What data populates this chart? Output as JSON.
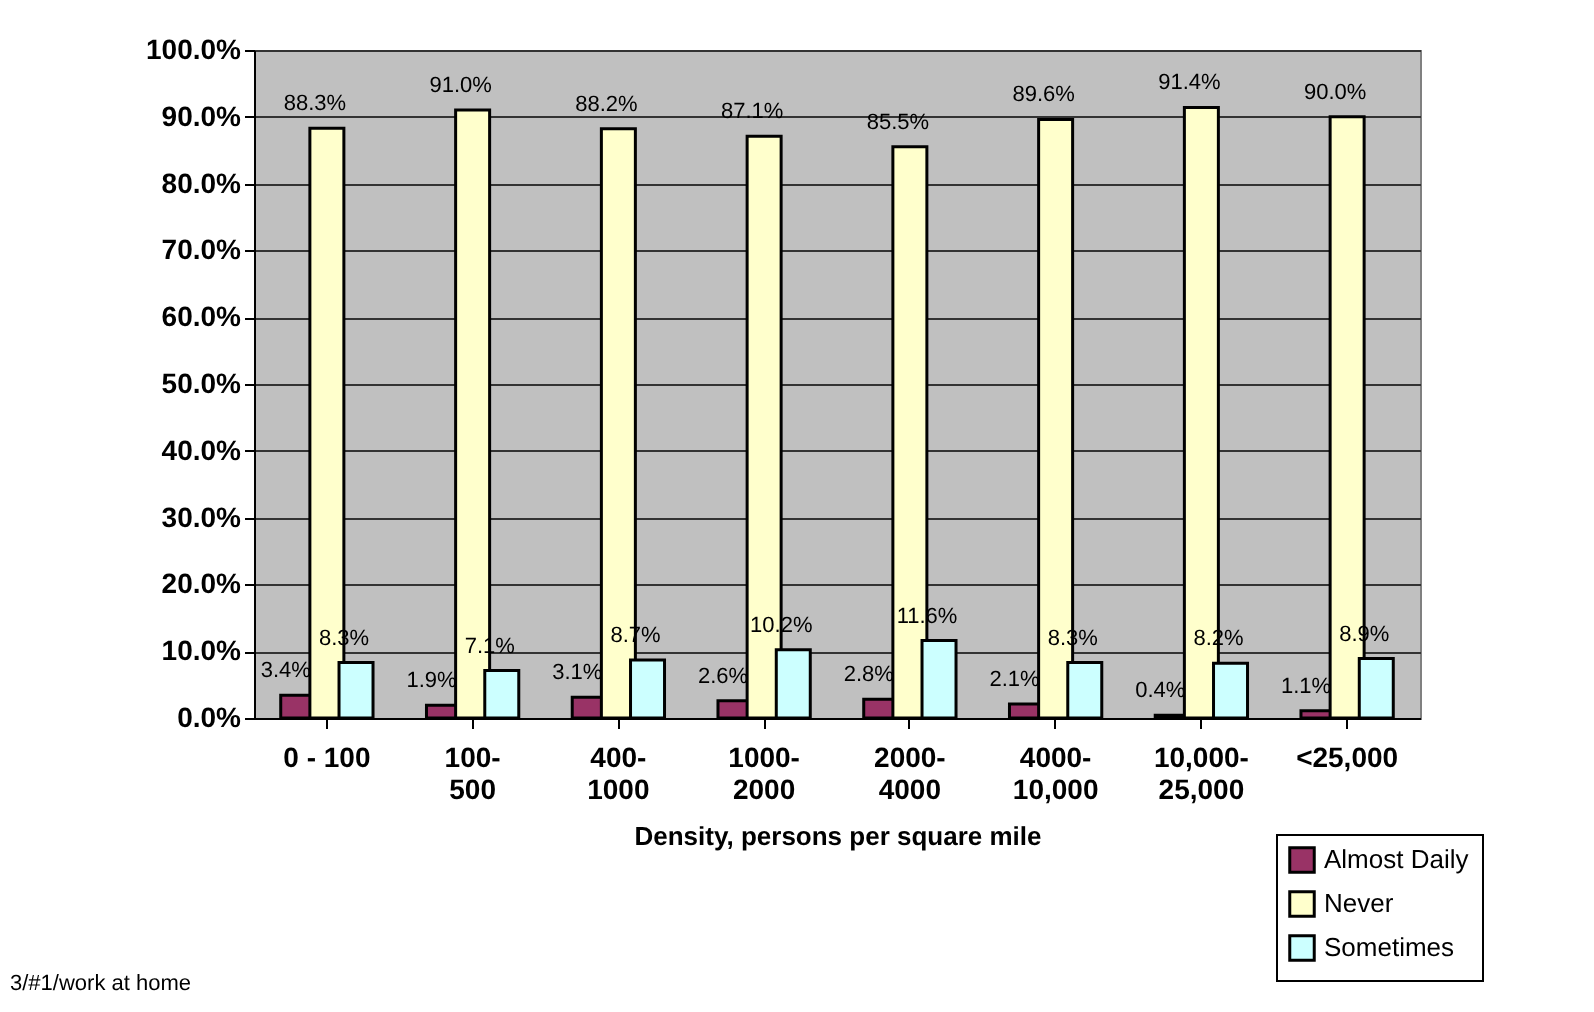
{
  "chart_data": {
    "type": "bar",
    "xlabel": "Density, persons per square mile",
    "categories": [
      "0 - 100",
      "100-500",
      "400-1000",
      "1000-2000",
      "2000-4000",
      "4000-10,000",
      "10,000-25,000",
      "<25,000"
    ],
    "series": [
      {
        "name": "Almost Daily",
        "color": "#993366",
        "values": [
          3.4,
          1.9,
          3.1,
          2.6,
          2.8,
          2.1,
          0.4,
          1.1
        ],
        "value_labels": [
          "3.4%",
          "1.9%",
          "3.1%",
          "2.6%",
          "2.8%",
          "2.1%",
          "0.4%",
          "1.1%"
        ]
      },
      {
        "name": "Never",
        "color": "#ffffcc",
        "values": [
          88.3,
          91.0,
          88.2,
          87.1,
          85.5,
          89.6,
          91.4,
          90.0
        ],
        "value_labels": [
          "88.3%",
          "91.0%",
          "88.2%",
          "87.1%",
          "85.5%",
          "89.6%",
          "91.4%",
          "90.0%"
        ]
      },
      {
        "name": "Sometimes",
        "color": "#ccffff",
        "values": [
          8.3,
          7.1,
          8.7,
          10.2,
          11.6,
          8.3,
          8.2,
          8.9
        ],
        "value_labels": [
          "8.3%",
          "7.1%",
          "8.7%",
          "10.2%",
          "11.6%",
          "8.3%",
          "8.2%",
          "8.9%"
        ]
      }
    ],
    "ylim": [
      0,
      100
    ],
    "yticks": [
      {
        "value": 0,
        "label": "0.0%"
      },
      {
        "value": 10,
        "label": "10.0%"
      },
      {
        "value": 20,
        "label": "20.0%"
      },
      {
        "value": 30,
        "label": "30.0%"
      },
      {
        "value": 40,
        "label": "40.0%"
      },
      {
        "value": 50,
        "label": "50.0%"
      },
      {
        "value": 60,
        "label": "60.0%"
      },
      {
        "value": 70,
        "label": "70.0%"
      },
      {
        "value": 80,
        "label": "80.0%"
      },
      {
        "value": 90,
        "label": "90.0%"
      },
      {
        "value": 100,
        "label": "100.0%"
      }
    ],
    "grid": "y",
    "legend": "bottom right",
    "annotations": [
      "3/#1/work at home"
    ]
  }
}
